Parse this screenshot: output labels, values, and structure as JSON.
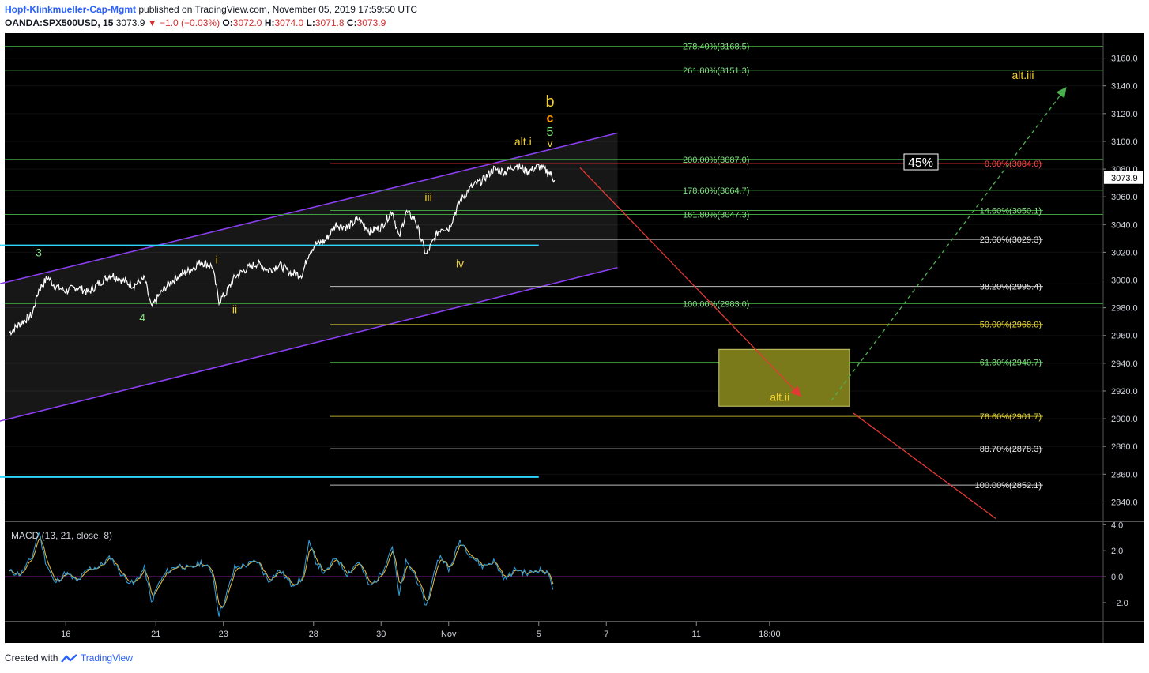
{
  "header": {
    "author": "Hopf-Klinkmueller-Cap-Mgmt",
    "published": "published on TradingView.com, November 05, 2019 17:59:50 UTC",
    "symbol": "OANDA:SPX500USD, 15",
    "last": "3073.9",
    "change": "−1.0 (−0.03%)",
    "o_label": "O:",
    "o": "3072.0",
    "h_label": "H:",
    "h": "3074.0",
    "l_label": "L:",
    "l": "3071.8",
    "c_label": "C:",
    "c": "3073.9"
  },
  "footer": {
    "created_with": "Created with",
    "brand": "TradingView"
  },
  "colors": {
    "background": "#000000",
    "candles": "#ffffff",
    "channel": "#8a3ff0",
    "support": "#2bd8ff",
    "ext_fib": "#3f9f3f",
    "ret_fib_white": "#bbbbbb",
    "ret_fib_yellow": "#d6c531",
    "ret_fib_green": "#3f9f3f",
    "ret_fib_red": "#c62828",
    "target_box": "#7a7a1a",
    "macd": "#2e9ad6",
    "signal": "#e0b43a",
    "zero_line": "#9c27b0",
    "bear_arrow": "#e53935",
    "bull_arrow": "#4caf50"
  },
  "chart_data": {
    "type": "line",
    "price_axis": {
      "range": [
        2826,
        3178
      ],
      "ticks": [
        2840,
        2860,
        2880,
        2900,
        2920,
        2940,
        2960,
        2980,
        3000,
        3020,
        3040,
        3060,
        3080,
        3100,
        3120,
        3140,
        3160
      ],
      "tick_labels": [
        "2840.0",
        "2860.0",
        "2880.0",
        "2900.0",
        "2920.0",
        "2940.0",
        "2960.0",
        "2980.0",
        "3000.0",
        "3020.0",
        "3040.0",
        "3060.0",
        "3080.0",
        "3100.0",
        "3120.0",
        "3140.0",
        "3160.0"
      ],
      "last_label": "3073.9"
    },
    "time_axis": {
      "labels": [
        "16",
        "21",
        "23",
        "28",
        "30",
        "Nov",
        "5",
        "7",
        "11",
        "18:00"
      ],
      "label_positions": [
        2.5,
        6.5,
        9.5,
        13.5,
        16.5,
        19.5,
        23.5,
        26.5,
        30.5,
        33.75
      ]
    },
    "price_series": {
      "name": "OANDA:SPX500USD",
      "x": [
        0,
        0.5,
        1,
        1.3,
        1.7,
        2,
        2.5,
        3,
        3.5,
        4,
        4.5,
        5,
        5.5,
        6,
        6.3,
        6.6,
        7,
        7.5,
        8,
        8.5,
        9,
        9.3,
        9.6,
        10,
        10.5,
        11,
        11.5,
        12,
        12.5,
        13,
        13.3,
        13.6,
        14,
        14.5,
        15,
        15.5,
        16,
        16.5,
        17,
        17.3,
        17.6,
        18,
        18.5,
        19,
        19.2,
        19.5,
        20,
        20.5,
        21,
        21.5,
        22,
        22.5,
        23,
        23.5,
        24,
        24.2
      ],
      "y": [
        2962,
        2969,
        2975,
        2993,
        3002,
        2996,
        2992,
        2995,
        2991,
        2998,
        3004,
        3000,
        2996,
        3001,
        2980,
        2988,
        2996,
        3003,
        3007,
        3013,
        3010,
        2985,
        2990,
        3002,
        3008,
        3012,
        3007,
        3011,
        3005,
        3004,
        3020,
        3026,
        3028,
        3040,
        3038,
        3044,
        3035,
        3038,
        3050,
        3030,
        3049,
        3044,
        3018,
        3034,
        3038,
        3037,
        3057,
        3067,
        3072,
        3080,
        3078,
        3083,
        3078,
        3082,
        3077,
        3072
      ]
    },
    "channel": {
      "upper": [
        [
          -0.5,
          2997
        ],
        [
          27,
          3106
        ]
      ],
      "lower": [
        [
          -0.5,
          2898
        ],
        [
          27,
          3009
        ]
      ]
    },
    "support_lines": [
      {
        "y": 3025,
        "x": [
          -0.5,
          23.5
        ]
      },
      {
        "y": 2858,
        "x": [
          -0.5,
          23.5
        ]
      }
    ],
    "fib_extension": [
      {
        "label": "278.40%(3168.5)",
        "value": 3168.5
      },
      {
        "label": "261.80%(3151.3)",
        "value": 3151.3
      },
      {
        "label": "200.00%(3087.0)",
        "value": 3087.0
      },
      {
        "label": "178.60%(3064.7)",
        "value": 3064.7
      },
      {
        "label": "161.80%(3047.3)",
        "value": 3047.3
      },
      {
        "label": "100.00%(2983.0)",
        "value": 2983.0
      }
    ],
    "fib_retracement": [
      {
        "label": "0.00%(3084.0)",
        "value": 3084.0,
        "color": "red"
      },
      {
        "label": "14.60%(3050.1)",
        "value": 3050.1,
        "color": "green"
      },
      {
        "label": "23.60%(3029.3)",
        "value": 3029.3,
        "color": "white"
      },
      {
        "label": "38.20%(2995.4)",
        "value": 2995.4,
        "color": "white"
      },
      {
        "label": "50.00%(2968.0)",
        "value": 2968.0,
        "color": "yellow"
      },
      {
        "label": "61.80%(2940.7)",
        "value": 2940.7,
        "color": "green"
      },
      {
        "label": "78.60%(2901.7)",
        "value": 2901.7,
        "color": "yellow"
      },
      {
        "label": "88.70%(2878.3)",
        "value": 2878.3,
        "color": "white"
      },
      {
        "label": "100.00%(2852.1)",
        "value": 2852.1,
        "color": "white"
      }
    ],
    "target_zone": {
      "price": [
        2909,
        2950
      ],
      "time": [
        31.5,
        37.3
      ]
    },
    "wave_labels": [
      {
        "text": "3",
        "x": 1.3,
        "y": 3017,
        "color": "green"
      },
      {
        "text": "4",
        "x": 5.9,
        "y": 2970,
        "color": "green"
      },
      {
        "text": "i",
        "x": 9.2,
        "y": 3012,
        "color": "yellow"
      },
      {
        "text": "ii",
        "x": 10.0,
        "y": 2976,
        "color": "yellow"
      },
      {
        "text": "iii",
        "x": 18.6,
        "y": 3057,
        "color": "yellow"
      },
      {
        "text": "iv",
        "x": 20.0,
        "y": 3009,
        "color": "yellow"
      },
      {
        "text": "alt.i",
        "x": 22.8,
        "y": 3097,
        "color": "yellow"
      },
      {
        "text": "b",
        "x": 24.0,
        "y": 3125,
        "color": "yellow"
      },
      {
        "text": "c",
        "x": 24.0,
        "y": 3114,
        "color": "orange"
      },
      {
        "text": "5",
        "x": 24.0,
        "y": 3104,
        "color": "green"
      },
      {
        "text": "v",
        "x": 24.0,
        "y": 3096,
        "color": "yellow"
      },
      {
        "text": "alt.ii",
        "x": 34.2,
        "y": 2913,
        "color": "yellow"
      },
      {
        "text": "alt.iii",
        "x": 45.0,
        "y": 3145,
        "color": "yellow"
      }
    ],
    "probability_label": "45%",
    "macd": {
      "name": "MACD (13, 21, close, 8)",
      "range": [
        -3.4,
        4.2
      ],
      "ticks": [
        4.0,
        2.0,
        0.0,
        -2.0
      ],
      "tick_labels": [
        "4.0",
        "2.0",
        "0.0",
        "−2.0"
      ],
      "x": [
        0,
        0.5,
        1,
        1.3,
        1.6,
        2,
        2.5,
        3,
        3.5,
        4,
        4.5,
        5,
        5.5,
        6,
        6.3,
        6.6,
        7,
        7.5,
        8,
        8.5,
        9,
        9.3,
        9.6,
        10,
        10.5,
        11,
        11.5,
        12,
        12.5,
        13,
        13.3,
        13.6,
        14,
        14.5,
        15,
        15.5,
        16,
        16.5,
        17,
        17.3,
        17.6,
        18,
        18.5,
        19,
        19.2,
        19.5,
        20,
        20.5,
        21,
        21.5,
        22,
        22.5,
        23,
        23.5,
        24,
        24.2
      ],
      "values": [
        0.4,
        0.2,
        1.5,
        3.5,
        1.2,
        -0.5,
        0.3,
        -0.4,
        0.6,
        0.8,
        1.5,
        0.1,
        -0.6,
        0.7,
        -2.0,
        -0.6,
        0.4,
        0.9,
        0.6,
        1.1,
        0.4,
        -2.9,
        -1.6,
        0.7,
        0.9,
        1.2,
        -0.3,
        0.5,
        -0.6,
        -0.2,
        2.6,
        1.2,
        0.2,
        1.5,
        0.2,
        1.2,
        -0.8,
        0.2,
        2.4,
        -1.5,
        1.1,
        0.2,
        -2.3,
        1.3,
        1.6,
        0.4,
        2.8,
        1.6,
        0.8,
        1.2,
        -0.2,
        0.6,
        0.2,
        0.6,
        0.1,
        -1.4
      ]
    }
  }
}
